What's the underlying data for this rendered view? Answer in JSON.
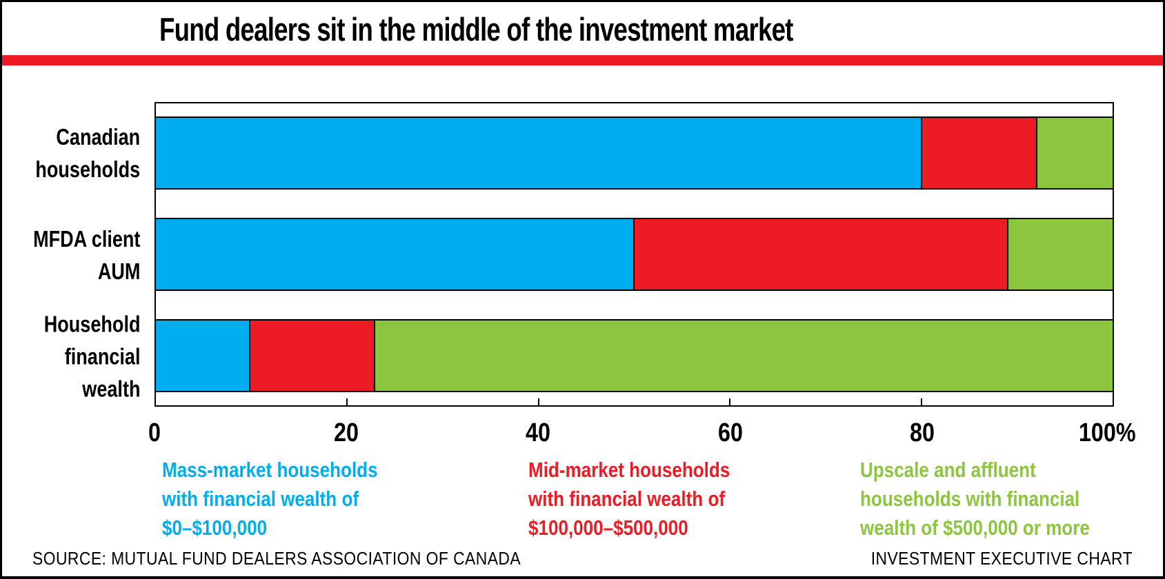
{
  "title": "Fund dealers sit in the middle of the investment market",
  "accent_stripe_color": "#ED1C24",
  "chart_data": {
    "type": "bar",
    "orientation": "horizontal",
    "stacked": true,
    "title": "Fund dealers sit in the middle of the investment market",
    "categories": [
      "Canadian households",
      "MFDA client AUM",
      "Household financial wealth"
    ],
    "series": [
      {
        "name": "Mass-market households with financial wealth of $0–$100,000",
        "color": "#00AEEF",
        "values": [
          80,
          50,
          10
        ]
      },
      {
        "name": "Mid-market households with financial wealth of $100,000–$500,000",
        "color": "#ED1C24",
        "values": [
          12,
          39,
          13
        ]
      },
      {
        "name": "Upscale and affluent households with financial wealth of $500,000 or more",
        "color": "#8CC63F",
        "values": [
          8,
          11,
          77
        ]
      }
    ],
    "xlim": [
      0,
      100
    ],
    "x_ticks": [
      {
        "value": 0,
        "label": "0"
      },
      {
        "value": 20,
        "label": "20"
      },
      {
        "value": 40,
        "label": "40"
      },
      {
        "value": 60,
        "label": "60"
      },
      {
        "value": 80,
        "label": "80"
      },
      {
        "value": 100,
        "label": "100%"
      }
    ],
    "grid": false,
    "legend_position": "bottom"
  },
  "row_labels": [
    "Canadian\nhouseholds",
    "MFDA client\nAUM",
    "Household\nfinancial\nwealth"
  ],
  "legend": [
    {
      "text": "Mass-market households\nwith financial wealth of\n$0–$100,000",
      "color": "#00AEEF"
    },
    {
      "text": "Mid-market households\nwith financial wealth of\n$100,000–$500,000",
      "color": "#ED1C24"
    },
    {
      "text": "Upscale and affluent\nhouseholds with financial\nwealth of $500,000 or more",
      "color": "#8CC63F"
    }
  ],
  "footer": {
    "source": "SOURCE: MUTUAL FUND DEALERS ASSOCIATION OF CANADA",
    "credit": "INVESTMENT EXECUTIVE CHART"
  }
}
